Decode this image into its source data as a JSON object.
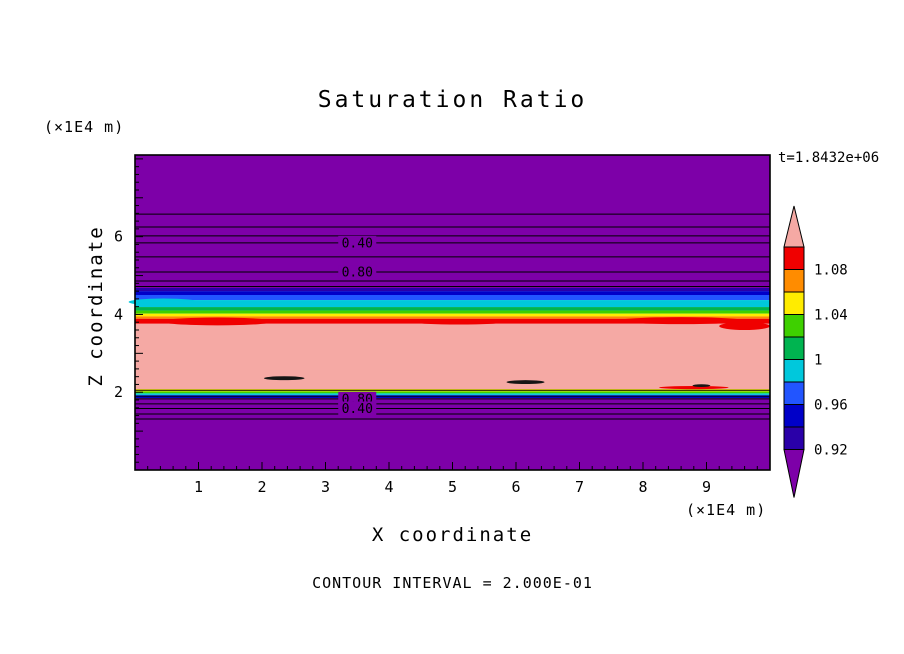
{
  "chart_data": {
    "type": "heatmap",
    "title": "Saturation Ratio",
    "xlabel": "X coordinate",
    "ylabel": "Z coordinate",
    "x_unit": "(×1E4 m)",
    "y_unit": "(×1E4 m)",
    "time_annotation": "t=1.8432e+06",
    "contour_interval_note": "CONTOUR INTERVAL = 2.000E-01",
    "contour_interval": 0.2,
    "xlim": [
      0,
      10
    ],
    "zlim": [
      0,
      8.1
    ],
    "x_ticks": [
      1,
      2,
      3,
      4,
      5,
      6,
      7,
      8,
      9
    ],
    "z_ticks": [
      2,
      4,
      6
    ],
    "minor_tick_step": 0.2,
    "contour_label_x": 3.5,
    "grid": false,
    "legend_position": "right-colorbar",
    "palette": {
      "purple": "#7d00a8",
      "navy2": "#2a00a8",
      "navy": "#0000c8",
      "blue": "#2255ff",
      "cyan": "#00c8dc",
      "green2": "#00b450",
      "green": "#3ed000",
      "yellow": "#ffec00",
      "orange": "#ff8c00",
      "red": "#f00000",
      "pink": "#f5a9a4",
      "ink": "#151515"
    },
    "bands": [
      {
        "color": "purple",
        "z_top": 8.1,
        "z_bottom": 4.68
      },
      {
        "color": "navy2",
        "z_top": 4.68,
        "z_bottom": 4.6
      },
      {
        "color": "navy",
        "z_top": 4.6,
        "z_bottom": 4.5
      },
      {
        "color": "blue",
        "z_top": 4.5,
        "z_bottom": 4.37
      },
      {
        "color": "cyan",
        "z_top": 4.37,
        "z_bottom": 4.19
      },
      {
        "color": "green2",
        "z_top": 4.19,
        "z_bottom": 4.1
      },
      {
        "color": "green",
        "z_top": 4.1,
        "z_bottom": 4.02
      },
      {
        "color": "yellow",
        "z_top": 4.02,
        "z_bottom": 3.95
      },
      {
        "color": "orange",
        "z_top": 3.95,
        "z_bottom": 3.89
      },
      {
        "color": "red",
        "z_top": 3.89,
        "z_bottom": 3.76
      },
      {
        "color": "pink",
        "z_top": 3.76,
        "z_bottom": 2.08
      },
      {
        "color": "yellow",
        "z_top": 2.08,
        "z_bottom": 2.02
      },
      {
        "color": "green",
        "z_top": 2.02,
        "z_bottom": 1.97
      },
      {
        "color": "cyan",
        "z_top": 1.97,
        "z_bottom": 1.93
      },
      {
        "color": "blue",
        "z_top": 1.93,
        "z_bottom": 1.89
      },
      {
        "color": "navy",
        "z_top": 1.89,
        "z_bottom": 1.85
      },
      {
        "color": "purple",
        "z_top": 1.85,
        "z_bottom": 0
      }
    ],
    "contour_lines": [
      {
        "z": 6.58
      },
      {
        "z": 6.25
      },
      {
        "z": 6.02
      },
      {
        "z": 5.84,
        "label": "0.40"
      },
      {
        "z": 5.48
      },
      {
        "z": 5.09,
        "label": "0.80"
      },
      {
        "z": 4.86
      },
      {
        "z": 4.72
      },
      {
        "z": 2.05
      },
      {
        "z": 1.9
      },
      {
        "z": 1.83,
        "label": "0.80"
      },
      {
        "z": 1.7
      },
      {
        "z": 1.58,
        "label": "0.40"
      },
      {
        "z": 1.44
      },
      {
        "z": 1.31
      }
    ],
    "patches": [
      {
        "color": "red",
        "x": 1.3,
        "z": 3.82,
        "rx": 0.9,
        "ry": 0.1
      },
      {
        "color": "red",
        "x": 5.1,
        "z": 3.8,
        "rx": 0.7,
        "ry": 0.06
      },
      {
        "color": "red",
        "x": 8.6,
        "z": 3.84,
        "rx": 1.0,
        "ry": 0.09
      },
      {
        "color": "red",
        "x": 9.6,
        "z": 3.7,
        "rx": 0.4,
        "ry": 0.1
      },
      {
        "color": "cyan",
        "x": 0.45,
        "z": 4.32,
        "rx": 0.55,
        "ry": 0.09
      },
      {
        "color": "red",
        "x": 8.8,
        "z": 2.12,
        "rx": 0.55,
        "ry": 0.04
      }
    ],
    "blobs": [
      {
        "x": 2.35,
        "z": 2.36,
        "rx": 0.32,
        "ry": 0.05
      },
      {
        "x": 6.15,
        "z": 2.26,
        "rx": 0.3,
        "ry": 0.05
      },
      {
        "x": 8.92,
        "z": 2.17,
        "rx": 0.14,
        "ry": 0.035
      }
    ],
    "colorbar": {
      "labels": [
        "1.08",
        "1.04",
        "1",
        "0.96",
        "0.92"
      ],
      "value_per_band": 0.02,
      "band_colors": [
        "red",
        "orange",
        "yellow",
        "green",
        "green2",
        "cyan",
        "blue",
        "navy",
        "navy2"
      ],
      "top_tip_color": "pink",
      "bottom_tip_color": "purple"
    }
  }
}
